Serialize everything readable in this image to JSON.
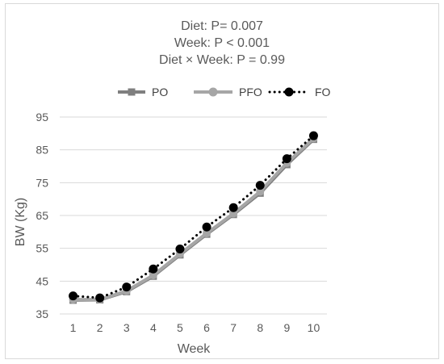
{
  "chart_data": {
    "type": "line",
    "title_lines": [
      "Diet: P= 0.007",
      "Week: P < 0.001",
      "Diet × Week: P = 0.99"
    ],
    "xlabel": "Week",
    "ylabel": "BW (Kg)",
    "x": [
      1,
      2,
      3,
      4,
      5,
      6,
      7,
      8,
      9,
      10
    ],
    "ylim": [
      35,
      95
    ],
    "yticks": [
      35,
      45,
      55,
      65,
      75,
      85,
      95
    ],
    "grid": "horizontal",
    "legend_position": "top",
    "series": [
      {
        "name": "PO",
        "color": "#7f7f7f",
        "style": "solid",
        "marker": "square",
        "values": [
          39.2,
          39.3,
          41.8,
          46.5,
          53.0,
          59.3,
          65.3,
          71.8,
          80.5,
          88.2
        ],
        "error": [
          1.0,
          1.0,
          1.0,
          1.0,
          1.0,
          1.0,
          1.0,
          1.0,
          1.0,
          1.0
        ]
      },
      {
        "name": "PFO",
        "color": "#a6a6a6",
        "style": "solid",
        "marker": "circle",
        "values": [
          39.4,
          39.4,
          42.0,
          46.8,
          53.3,
          59.6,
          65.6,
          72.3,
          81.0,
          88.5
        ],
        "error": [
          1.0,
          1.0,
          1.0,
          1.0,
          1.0,
          1.0,
          1.0,
          1.0,
          1.0,
          1.0
        ]
      },
      {
        "name": "FO",
        "color": "#000000",
        "style": "dotted",
        "marker": "circle",
        "values": [
          40.5,
          39.9,
          43.2,
          48.7,
          54.8,
          61.5,
          67.4,
          74.2,
          82.3,
          89.3
        ],
        "error": [
          1.0,
          1.0,
          1.0,
          1.0,
          1.0,
          1.0,
          1.0,
          1.0,
          1.0,
          1.0
        ]
      }
    ]
  }
}
